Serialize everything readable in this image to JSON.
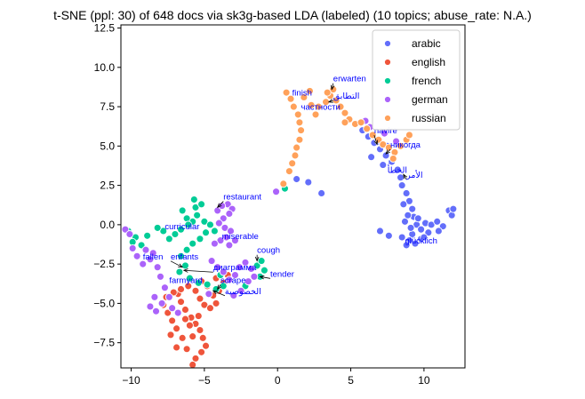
{
  "chart_data": {
    "type": "scatter",
    "title": "t-SNE (ppl: 30) of 648 docs via sk3g-based LDA (labeled) (10 topics; abuse_rate: N.A.)",
    "xlabel": "",
    "ylabel": "",
    "xlim": [
      -10.7,
      12.8
    ],
    "ylim": [
      -9.1,
      12.7
    ],
    "xticks": [
      -10,
      -5,
      0,
      5,
      10
    ],
    "yticks": [
      -7.5,
      -5.0,
      -2.5,
      0.0,
      2.5,
      5.0,
      7.5,
      10.0,
      12.5
    ],
    "xtick_labels": [
      "−10",
      "−5",
      "0",
      "5",
      "10"
    ],
    "ytick_labels": [
      "−7.5",
      "−5.0",
      "−2.5",
      "0.0",
      "2.5",
      "5.0",
      "7.5",
      "10.0",
      "12.5"
    ],
    "grid": false,
    "legend_position": "top-right",
    "series": [
      {
        "name": "arabic",
        "color": "#636efa",
        "points": [
          [
            5.8,
            6.0
          ],
          [
            6.2,
            5.6
          ],
          [
            6.6,
            5.2
          ],
          [
            7.0,
            4.8
          ],
          [
            7.4,
            4.4
          ],
          [
            7.8,
            4.0
          ],
          [
            8.2,
            3.5
          ],
          [
            8.4,
            3.0
          ],
          [
            8.5,
            2.5
          ],
          [
            8.8,
            2.0
          ],
          [
            9.0,
            1.5
          ],
          [
            9.2,
            1.0
          ],
          [
            9.3,
            0.5
          ],
          [
            9.5,
            0.0
          ],
          [
            9.8,
            -0.3
          ],
          [
            10.1,
            0.1
          ],
          [
            10.5,
            0.0
          ],
          [
            10.9,
            0.2
          ],
          [
            11.3,
            -0.1
          ],
          [
            9.2,
            -0.6
          ],
          [
            9.0,
            -1.0
          ],
          [
            8.8,
            -1.3
          ],
          [
            9.4,
            -1.2
          ],
          [
            9.8,
            -0.9
          ],
          [
            8.5,
            -0.8
          ],
          [
            8.7,
            0.2
          ],
          [
            9.1,
            -0.2
          ],
          [
            8.9,
            0.6
          ],
          [
            10.3,
            -0.5
          ],
          [
            11.0,
            -0.4
          ],
          [
            11.7,
            0.9
          ],
          [
            11.9,
            0.6
          ],
          [
            12.0,
            1.0
          ],
          [
            7.0,
            -0.4
          ],
          [
            7.6,
            -0.7
          ],
          [
            2.1,
            2.7
          ],
          [
            1.3,
            2.9
          ],
          [
            3.0,
            2.0
          ],
          [
            6.4,
            4.3
          ],
          [
            7.2,
            3.8
          ],
          [
            8.6,
            1.3
          ],
          [
            9.6,
            0.4
          ],
          [
            10.0,
            -0.8
          ],
          [
            6.9,
            5.3
          ],
          [
            7.5,
            5.0
          ]
        ]
      },
      {
        "name": "english",
        "color": "#ef553b",
        "points": [
          [
            -6.8,
            -4.4
          ],
          [
            -6.6,
            -4.9
          ],
          [
            -6.3,
            -5.4
          ],
          [
            -5.9,
            -5.9
          ],
          [
            -5.6,
            -6.3
          ],
          [
            -5.3,
            -6.7
          ],
          [
            -5.1,
            -7.2
          ],
          [
            -4.9,
            -7.7
          ],
          [
            -5.2,
            -8.1
          ],
          [
            -5.6,
            -8.5
          ],
          [
            -5.8,
            -8.9
          ],
          [
            -6.2,
            -7.9
          ],
          [
            -6.5,
            -7.2
          ],
          [
            -6.9,
            -6.6
          ],
          [
            -7.2,
            -6.1
          ],
          [
            -7.5,
            -5.6
          ],
          [
            -7.8,
            -5.1
          ],
          [
            -7.6,
            -4.6
          ],
          [
            -7.1,
            -4.3
          ],
          [
            -6.6,
            -4.1
          ],
          [
            -6.1,
            -3.9
          ],
          [
            -5.6,
            -4.2
          ],
          [
            -5.3,
            -4.7
          ],
          [
            -5.0,
            -5.1
          ],
          [
            -4.6,
            -5.3
          ],
          [
            -4.2,
            -5.0
          ],
          [
            -4.4,
            -4.5
          ],
          [
            -4.8,
            -3.9
          ],
          [
            -5.2,
            -3.6
          ],
          [
            -4.0,
            -4.2
          ],
          [
            -3.7,
            -3.7
          ],
          [
            -3.4,
            -3.2
          ],
          [
            -4.2,
            -3.4
          ],
          [
            -5.8,
            -7.1
          ],
          [
            -6.0,
            -6.4
          ],
          [
            -6.3,
            -6.0
          ],
          [
            -6.9,
            -7.8
          ],
          [
            -7.3,
            -7.0
          ],
          [
            -5.4,
            -5.8
          ]
        ]
      },
      {
        "name": "french",
        "color": "#00cc96",
        "points": [
          [
            -5.7,
            1.6
          ],
          [
            -5.6,
            1.1
          ],
          [
            -5.5,
            0.6
          ],
          [
            -5.8,
            0.2
          ],
          [
            -6.2,
            0.4
          ],
          [
            -6.5,
            0.9
          ],
          [
            -6.1,
            0.0
          ],
          [
            -6.6,
            -0.3
          ],
          [
            -7.0,
            -0.6
          ],
          [
            -7.4,
            -0.9
          ],
          [
            -7.8,
            -0.4
          ],
          [
            -8.2,
            -0.2
          ],
          [
            -5.0,
            0.2
          ],
          [
            -4.6,
            0.0
          ],
          [
            -4.3,
            -0.4
          ],
          [
            -4.9,
            -0.5
          ],
          [
            -5.3,
            -0.9
          ],
          [
            -5.8,
            -1.2
          ],
          [
            -6.2,
            -1.6
          ],
          [
            -6.6,
            -2.0
          ],
          [
            -6.3,
            -2.6
          ],
          [
            -6.7,
            -3.0
          ],
          [
            -6.0,
            -3.4
          ],
          [
            -5.4,
            -3.7
          ],
          [
            -4.8,
            -3.8
          ],
          [
            -4.2,
            -4.1
          ],
          [
            -3.7,
            -3.9
          ],
          [
            -10.2,
            -0.4
          ],
          [
            -9.7,
            -0.8
          ],
          [
            -9.3,
            -1.3
          ],
          [
            -8.9,
            -0.7
          ],
          [
            -9.9,
            -1.1
          ],
          [
            -1.4,
            -2.6
          ],
          [
            -1.1,
            -2.3
          ],
          [
            -0.9,
            -2.9
          ],
          [
            -1.2,
            -3.3
          ],
          [
            0.5,
            2.3
          ],
          [
            -2.2,
            -3.9
          ],
          [
            -3.9,
            -3.2
          ],
          [
            -5.2,
            1.3
          ]
        ]
      },
      {
        "name": "german",
        "color": "#ab63fa",
        "points": [
          [
            -3.4,
            1.3
          ],
          [
            -3.1,
            1.0
          ],
          [
            -3.3,
            0.7
          ],
          [
            -3.7,
            0.4
          ],
          [
            -4.1,
            0.9
          ],
          [
            -3.8,
            1.2
          ],
          [
            -4.0,
            0.1
          ],
          [
            -3.6,
            -0.2
          ],
          [
            -3.2,
            -0.4
          ],
          [
            -3.5,
            -0.8
          ],
          [
            -3.9,
            -1.0
          ],
          [
            -4.3,
            -1.2
          ],
          [
            -3.3,
            -1.3
          ],
          [
            -2.9,
            -1.0
          ],
          [
            -10.4,
            -0.3
          ],
          [
            -10.1,
            -0.6
          ],
          [
            -9.9,
            -1.5
          ],
          [
            -9.6,
            -2.0
          ],
          [
            -9.2,
            -2.5
          ],
          [
            -8.7,
            -2.2
          ],
          [
            -8.5,
            -1.8
          ],
          [
            -8.2,
            -2.7
          ],
          [
            -8.0,
            -3.3
          ],
          [
            -7.7,
            -4.0
          ],
          [
            -7.4,
            -4.6
          ],
          [
            -7.9,
            -5.0
          ],
          [
            -8.3,
            -5.5
          ],
          [
            -8.7,
            -5.2
          ],
          [
            -8.4,
            -4.6
          ],
          [
            -7.2,
            -5.3
          ],
          [
            -6.8,
            -5.6
          ],
          [
            -4.5,
            -2.3
          ],
          [
            -4.1,
            -2.7
          ],
          [
            -3.7,
            -3.0
          ],
          [
            -3.3,
            -3.5
          ],
          [
            -2.9,
            -3.2
          ],
          [
            -2.6,
            -2.7
          ],
          [
            -2.2,
            -2.4
          ],
          [
            -1.8,
            -2.8
          ],
          [
            -1.6,
            -3.3
          ],
          [
            -2.0,
            -3.6
          ],
          [
            -2.5,
            -4.2
          ],
          [
            -3.0,
            -4.5
          ],
          [
            -0.1,
            2.1
          ],
          [
            6.3,
            6.2
          ],
          [
            6.0,
            6.6
          ],
          [
            7.3,
            5.8
          ],
          [
            8.1,
            5.3
          ],
          [
            -4.7,
            -4.4
          ],
          [
            -9.0,
            -1.6
          ]
        ]
      },
      {
        "name": "russian",
        "color": "#ffa15a",
        "points": [
          [
            0.6,
            8.4
          ],
          [
            0.9,
            8.0
          ],
          [
            1.1,
            7.5
          ],
          [
            1.4,
            7.0
          ],
          [
            1.5,
            6.5
          ],
          [
            1.6,
            6.0
          ],
          [
            1.5,
            5.4
          ],
          [
            1.3,
            4.9
          ],
          [
            1.2,
            4.4
          ],
          [
            1.0,
            3.9
          ],
          [
            0.8,
            3.4
          ],
          [
            1.8,
            8.1
          ],
          [
            2.3,
            7.6
          ],
          [
            2.8,
            7.5
          ],
          [
            3.3,
            7.8
          ],
          [
            3.6,
            8.2
          ],
          [
            3.8,
            8.6
          ],
          [
            3.4,
            8.4
          ],
          [
            4.0,
            7.9
          ],
          [
            4.3,
            7.5
          ],
          [
            4.6,
            7.1
          ],
          [
            4.9,
            6.7
          ],
          [
            5.3,
            6.4
          ],
          [
            5.7,
            6.5
          ],
          [
            6.1,
            6.1
          ],
          [
            6.5,
            5.7
          ],
          [
            6.9,
            5.4
          ],
          [
            7.2,
            5.1
          ],
          [
            7.6,
            4.9
          ],
          [
            8.0,
            4.6
          ],
          [
            8.4,
            5.0
          ],
          [
            8.8,
            5.4
          ],
          [
            9.0,
            5.7
          ],
          [
            7.9,
            4.2
          ],
          [
            2.2,
            8.5
          ],
          [
            2.6,
            7.0
          ],
          [
            0.4,
            2.6
          ],
          [
            4.6,
            6.5
          ]
        ]
      }
    ],
    "annotations": [
      {
        "text": "erwarten",
        "tx": 3.8,
        "ty": 9.1,
        "px": 3.7,
        "py": 8.6
      },
      {
        "text": "finish",
        "tx": 1.0,
        "ty": 8.2,
        "px": null,
        "py": null
      },
      {
        "text": "التطابق",
        "tx": 3.8,
        "ty": 8.0,
        "px": 3.5,
        "py": 7.8
      },
      {
        "text": "частности",
        "tx": 1.6,
        "ty": 7.3,
        "px": null,
        "py": null
      },
      {
        "text": "navire",
        "tx": 6.6,
        "ty": 5.8,
        "px": 6.8,
        "py": 5.1
      },
      {
        "text": "никогда",
        "tx": 7.7,
        "ty": 4.9,
        "px": 7.4,
        "py": 4.5
      },
      {
        "text": "الخطأ",
        "tx": 7.5,
        "ty": 3.3,
        "px": null,
        "py": null
      },
      {
        "text": "الأمر",
        "tx": 8.8,
        "ty": 3.0,
        "px": 8.6,
        "py": 3.2
      },
      {
        "text": "restaurant",
        "tx": -3.7,
        "ty": 1.6,
        "px": -4.1,
        "py": 1.1
      },
      {
        "text": "curricular",
        "tx": -7.7,
        "ty": -0.3,
        "px": null,
        "py": null
      },
      {
        "text": "glücklich",
        "tx": 8.7,
        "ty": -1.2,
        "px": null,
        "py": null
      },
      {
        "text": "miserable",
        "tx": -3.8,
        "ty": -0.9,
        "px": null,
        "py": null
      },
      {
        "text": "cough",
        "tx": -1.4,
        "ty": -1.8,
        "px": -1.4,
        "py": -2.3
      },
      {
        "text": "fallen",
        "tx": -9.2,
        "ty": -2.2,
        "px": null,
        "py": null
      },
      {
        "text": "enfants",
        "tx": -7.3,
        "ty": -2.2,
        "px": -6.5,
        "py": -2.7
      },
      {
        "text": "диаграмма",
        "tx": -4.4,
        "ty": -2.9,
        "px": -6.4,
        "py": -2.9
      },
      {
        "text": "tender",
        "tx": -0.5,
        "ty": -3.3,
        "px": -1.2,
        "py": -3.3
      },
      {
        "text": "farmyard",
        "tx": -7.4,
        "ty": -3.7,
        "px": null,
        "py": null
      },
      {
        "text": "scrape",
        "tx": -3.9,
        "ty": -3.7,
        "px": -4.1,
        "py": -4.1
      },
      {
        "text": "الخصوصية",
        "tx": -3.6,
        "ty": -4.4,
        "px": -4.4,
        "py": -4.2
      }
    ]
  }
}
